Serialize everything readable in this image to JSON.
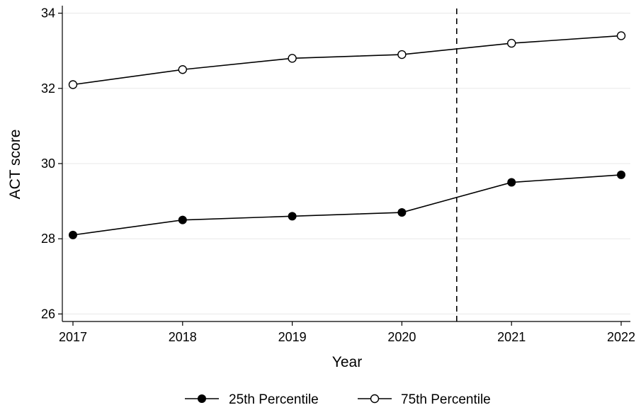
{
  "chart_data": {
    "type": "line",
    "title": "",
    "xlabel": "Year",
    "ylabel": "ACT score",
    "x": [
      2017,
      2018,
      2019,
      2020,
      2021,
      2022
    ],
    "xticks": [
      "2017",
      "2018",
      "2019",
      "2020",
      "2021",
      "2022"
    ],
    "yticks": [
      "26",
      "28",
      "30",
      "32",
      "34"
    ],
    "ylim": [
      25.8,
      34.2
    ],
    "xlim": [
      2017,
      2022
    ],
    "grid": "horizontal",
    "reference_line": {
      "x": 2020.5,
      "style": "dashed"
    },
    "series": [
      {
        "name": "25th Percentile",
        "marker": "filled-circle",
        "values": [
          28.1,
          28.5,
          28.6,
          28.7,
          29.5,
          29.7
        ]
      },
      {
        "name": "75th Percentile",
        "marker": "hollow-circle",
        "values": [
          32.1,
          32.5,
          32.8,
          32.9,
          33.2,
          33.4
        ]
      }
    ],
    "legend_position": "bottom",
    "colors": {
      "line": "#000000",
      "grid": "#e8e8e8",
      "axis": "#000000"
    }
  }
}
